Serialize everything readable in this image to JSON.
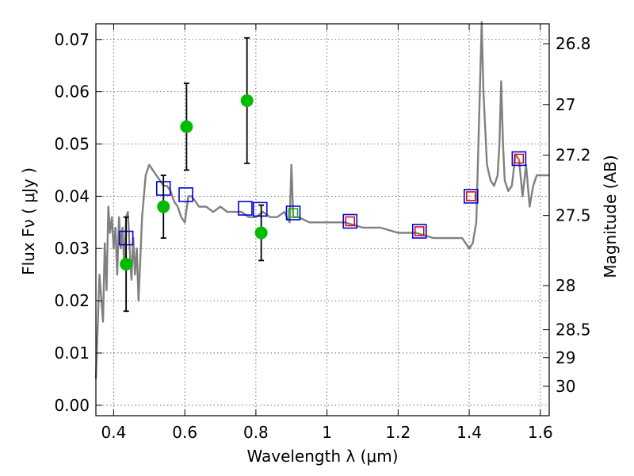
{
  "chart_data": {
    "type": "scatter",
    "xlabel": "Wavelength  λ (μm)",
    "ylabel": "Flux  Fν  ( μJy )",
    "ylabel2": "Magnitude (AB)",
    "xlim": [
      0.35,
      1.625
    ],
    "ylim": [
      -0.002,
      0.073
    ],
    "grid": true,
    "x_ticks": [
      0.4,
      0.6,
      0.8,
      1.0,
      1.2,
      1.4,
      1.6
    ],
    "x_tick_labels": [
      "0.4",
      "0.6",
      "0.8",
      "1",
      "1.2",
      "1.4",
      "1.6"
    ],
    "y_ticks": [
      0.0,
      0.01,
      0.02,
      0.03,
      0.04,
      0.05,
      0.06,
      0.07
    ],
    "y_tick_labels": [
      "0.00",
      "0.01",
      "0.02",
      "0.03",
      "0.04",
      "0.05",
      "0.06",
      "0.07"
    ],
    "mag_ticks": [
      26.8,
      27,
      27.2,
      27.5,
      28,
      28.5,
      29,
      30
    ],
    "mag_tick_labels": [
      "26.8",
      "27",
      "27.2",
      "27.5",
      "28",
      "28.5",
      "29",
      "30"
    ],
    "series": [
      {
        "name": "observed photometry",
        "style": "green-circle-errorbar",
        "color": "#00bb00",
        "x": [
          0.435,
          0.54,
          0.605,
          0.775,
          0.815
        ],
        "y": [
          0.027,
          0.038,
          0.0533,
          0.0583,
          0.033
        ],
        "yerr": [
          0.009,
          0.006,
          0.0083,
          0.012,
          0.0053
        ]
      },
      {
        "name": "model photometry (blue)",
        "style": "blue-square",
        "color": "#0000dd",
        "x": [
          0.435,
          0.54,
          0.603,
          0.77,
          0.812,
          0.905,
          1.065,
          1.26,
          1.405,
          1.54
        ],
        "y": [
          0.032,
          0.0415,
          0.0403,
          0.0377,
          0.0375,
          0.0368,
          0.0352,
          0.0333,
          0.04,
          0.0472
        ]
      },
      {
        "name": "model photometry (red)",
        "style": "red-square",
        "color": "#dd0000",
        "x": [
          1.065,
          1.26,
          1.405,
          1.54
        ],
        "y": [
          0.0352,
          0.0333,
          0.04,
          0.0472
        ]
      },
      {
        "name": "model photometry (green)",
        "style": "green-square",
        "color": "#00bb00",
        "x": [
          0.905
        ],
        "y": [
          0.0368
        ]
      },
      {
        "name": "model SED",
        "style": "gray-line",
        "color": "#808080",
        "x": [
          0.35,
          0.36,
          0.37,
          0.375,
          0.38,
          0.385,
          0.39,
          0.395,
          0.4,
          0.405,
          0.41,
          0.415,
          0.42,
          0.425,
          0.43,
          0.435,
          0.44,
          0.445,
          0.45,
          0.455,
          0.46,
          0.465,
          0.47,
          0.48,
          0.49,
          0.5,
          0.51,
          0.52,
          0.53,
          0.54,
          0.55,
          0.56,
          0.57,
          0.58,
          0.59,
          0.6,
          0.61,
          0.62,
          0.63,
          0.64,
          0.66,
          0.68,
          0.7,
          0.72,
          0.74,
          0.76,
          0.78,
          0.8,
          0.82,
          0.84,
          0.86,
          0.88,
          0.895,
          0.9,
          0.905,
          0.92,
          0.95,
          1.0,
          1.05,
          1.1,
          1.15,
          1.2,
          1.25,
          1.3,
          1.35,
          1.38,
          1.4,
          1.41,
          1.42,
          1.43,
          1.435,
          1.44,
          1.45,
          1.46,
          1.47,
          1.48,
          1.485,
          1.49,
          1.495,
          1.5,
          1.51,
          1.52,
          1.53,
          1.54,
          1.55,
          1.56,
          1.57,
          1.58,
          1.59,
          1.6,
          1.625
        ],
        "y": [
          0.005,
          0.025,
          0.016,
          0.031,
          0.022,
          0.038,
          0.033,
          0.036,
          0.03,
          0.034,
          0.025,
          0.036,
          0.03,
          0.034,
          0.026,
          0.036,
          0.037,
          0.03,
          0.024,
          0.032,
          0.025,
          0.03,
          0.02,
          0.036,
          0.044,
          0.046,
          0.045,
          0.044,
          0.043,
          0.042,
          0.042,
          0.041,
          0.039,
          0.038,
          0.036,
          0.035,
          0.04,
          0.04,
          0.039,
          0.038,
          0.038,
          0.037,
          0.038,
          0.037,
          0.037,
          0.037,
          0.036,
          0.036,
          0.037,
          0.036,
          0.036,
          0.037,
          0.035,
          0.046,
          0.036,
          0.036,
          0.035,
          0.035,
          0.035,
          0.034,
          0.034,
          0.033,
          0.033,
          0.032,
          0.032,
          0.032,
          0.03,
          0.031,
          0.035,
          0.06,
          0.075,
          0.06,
          0.046,
          0.043,
          0.042,
          0.044,
          0.05,
          0.062,
          0.05,
          0.043,
          0.041,
          0.042,
          0.048,
          0.047,
          0.04,
          0.046,
          0.038,
          0.042,
          0.044,
          0.044,
          0.044
        ]
      }
    ]
  }
}
